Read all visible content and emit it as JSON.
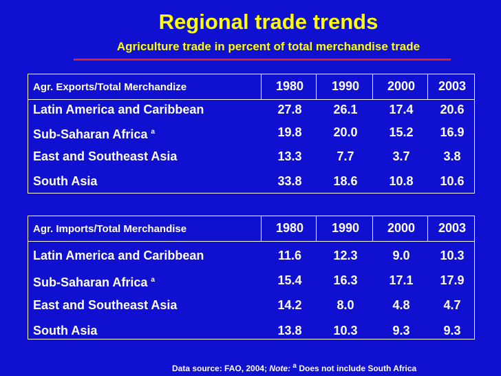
{
  "header": {
    "title": "Regional trade trends",
    "subtitle": "Agriculture trade in percent of total merchandise trade"
  },
  "tables": [
    {
      "heading": "Agr. Exports/Total Merchandize",
      "columns": [
        "1980",
        "1990",
        "2000",
        "2003"
      ],
      "rows": [
        {
          "label": "Latin America and Caribbean",
          "values": [
            "27.8",
            "26.1",
            "17.4",
            "20.6"
          ]
        },
        {
          "label": "Sub-Saharan Africa",
          "mark": "a",
          "values": [
            "19.8",
            "20.0",
            "15.2",
            "16.9"
          ]
        },
        {
          "label": "East and Southeast Asia",
          "values": [
            "13.3",
            "7.7",
            "3.7",
            "3.8"
          ]
        },
        {
          "label": "South Asia",
          "values": [
            "33.8",
            "18.6",
            "10.8",
            "10.6"
          ]
        }
      ]
    },
    {
      "heading": "Agr. Imports/Total Merchandise",
      "columns": [
        "1980",
        "1990",
        "2000",
        "2003"
      ],
      "rows": [
        {
          "label": "Latin America and Caribbean",
          "values": [
            "11.6",
            "12.3",
            "9.0",
            "10.3"
          ]
        },
        {
          "label": "Sub-Saharan Africa",
          "mark": "a",
          "values": [
            "15.4",
            "16.3",
            "17.1",
            "17.9"
          ]
        },
        {
          "label": "East and Southeast Asia",
          "values": [
            "14.2",
            "8.0",
            "4.8",
            "4.7"
          ]
        },
        {
          "label": "South Asia",
          "values": [
            "13.8",
            "10.3",
            "9.3",
            "9.3"
          ]
        }
      ]
    }
  ],
  "footer": {
    "source": "Data source: FAO, 2004;",
    "note_label": "Note:",
    "note_mark": "a",
    "note_text": "Does not include South Africa"
  }
}
